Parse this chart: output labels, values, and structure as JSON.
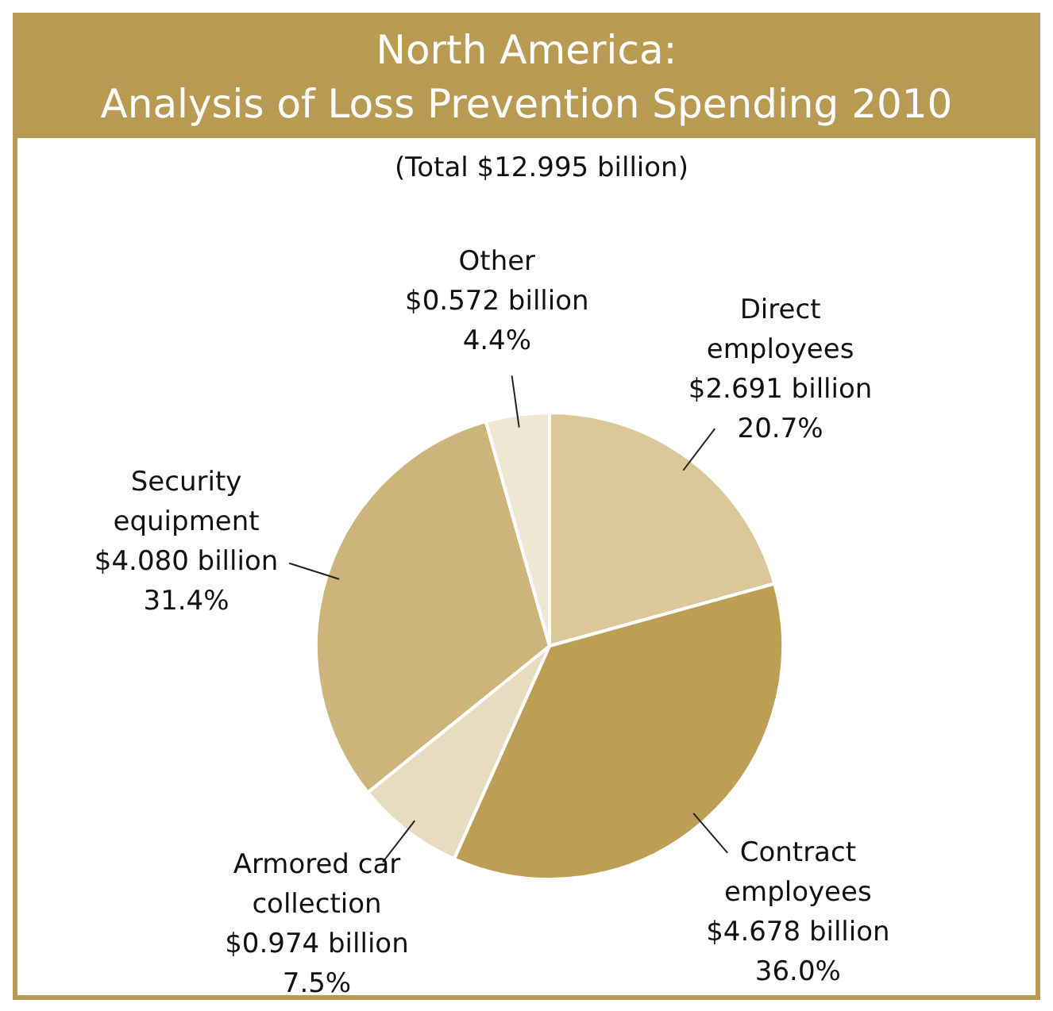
{
  "chart_data": {
    "type": "pie",
    "title": "North America:\nAnalysis of Loss Prevention Spending 2010",
    "subtitle": "(Total $12.995 billion)",
    "categories": [
      "Direct employees",
      "Contract employees",
      "Armored car collection",
      "Security equipment",
      "Other"
    ],
    "values": [
      20.7,
      36.0,
      7.5,
      31.4,
      4.4
    ],
    "colors": [
      "#dbc797",
      "#bd9e55",
      "#e8dcc0",
      "#cdb47a",
      "#efe6d4"
    ],
    "value_labels": [
      "$2.691 billion\n20.7%",
      "$4.678 billion\n36.0%",
      "$0.974 billion\n7.5%",
      "$4.080 billion\n31.4%",
      "$0.572 billion\n4.4%"
    ],
    "legend": false
  }
}
